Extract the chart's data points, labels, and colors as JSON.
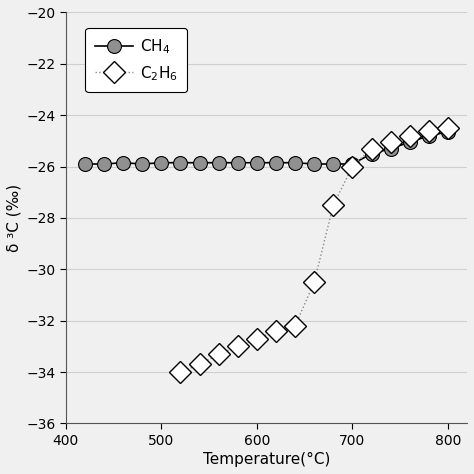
{
  "ch4_temp": [
    420,
    440,
    460,
    480,
    500,
    520,
    540,
    560,
    580,
    600,
    620,
    640,
    660,
    680,
    700,
    720,
    740,
    760,
    780,
    800
  ],
  "ch4_vals": [
    -25.9,
    -25.9,
    -25.85,
    -25.9,
    -25.85,
    -25.85,
    -25.85,
    -25.85,
    -25.85,
    -25.85,
    -25.85,
    -25.85,
    -25.9,
    -25.9,
    -25.9,
    -25.5,
    -25.3,
    -25.05,
    -24.8,
    -24.65
  ],
  "c2h6_temp": [
    520,
    540,
    560,
    580,
    600,
    620,
    640,
    660,
    680,
    700,
    720,
    740,
    760,
    780,
    800
  ],
  "c2h6_vals": [
    -34.0,
    -33.7,
    -33.3,
    -33.0,
    -32.7,
    -32.4,
    -32.2,
    -30.5,
    -27.5,
    -26.0,
    -25.3,
    -25.05,
    -24.8,
    -24.6,
    -24.5
  ],
  "xlim": [
    400,
    820
  ],
  "ylim": [
    -36,
    -20
  ],
  "xticks": [
    400,
    500,
    600,
    700,
    800
  ],
  "yticks": [
    -36,
    -34,
    -32,
    -30,
    -28,
    -26,
    -24,
    -22,
    -20
  ],
  "xlabel": "Temperature(°C)",
  "ylabel": "δ ³C (‰)",
  "ch4_label": "CH$_4$",
  "c2h6_label": "C$_2$H$_6$",
  "dot_color": "#909090",
  "line_color": "#000000",
  "background_color": "#f0f0f0",
  "grid_color": "#d0d0d0"
}
